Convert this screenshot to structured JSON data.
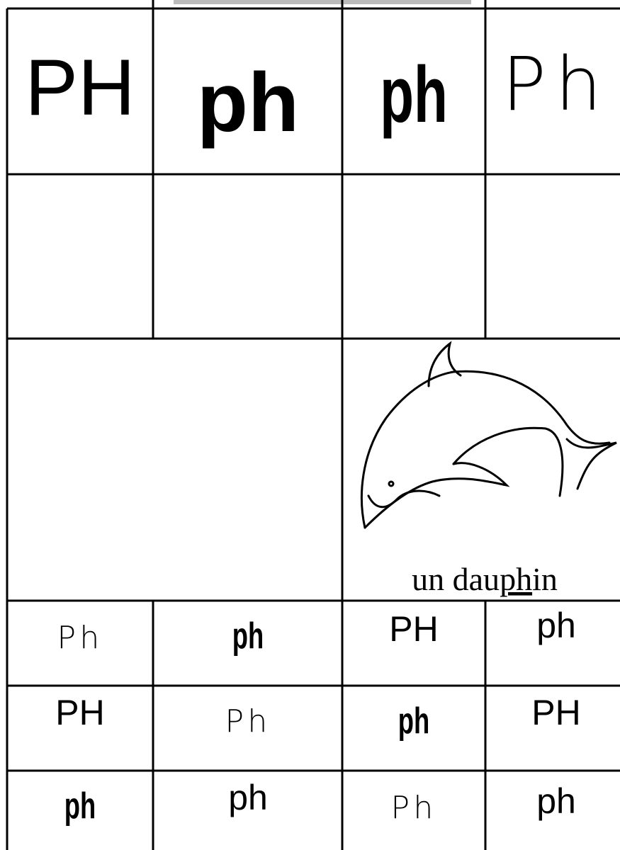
{
  "header_row": [
    "PH",
    "ph",
    "ph",
    "Ph"
  ],
  "dolphin_caption": {
    "before": "un dau",
    "underlined": "ph",
    "after": "in"
  },
  "grid": [
    [
      "Ph",
      "ph",
      "PH",
      "ph"
    ],
    [
      "PH",
      "Ph",
      "ph",
      "PH"
    ],
    [
      "ph",
      "ph",
      "Ph",
      "ph"
    ]
  ]
}
